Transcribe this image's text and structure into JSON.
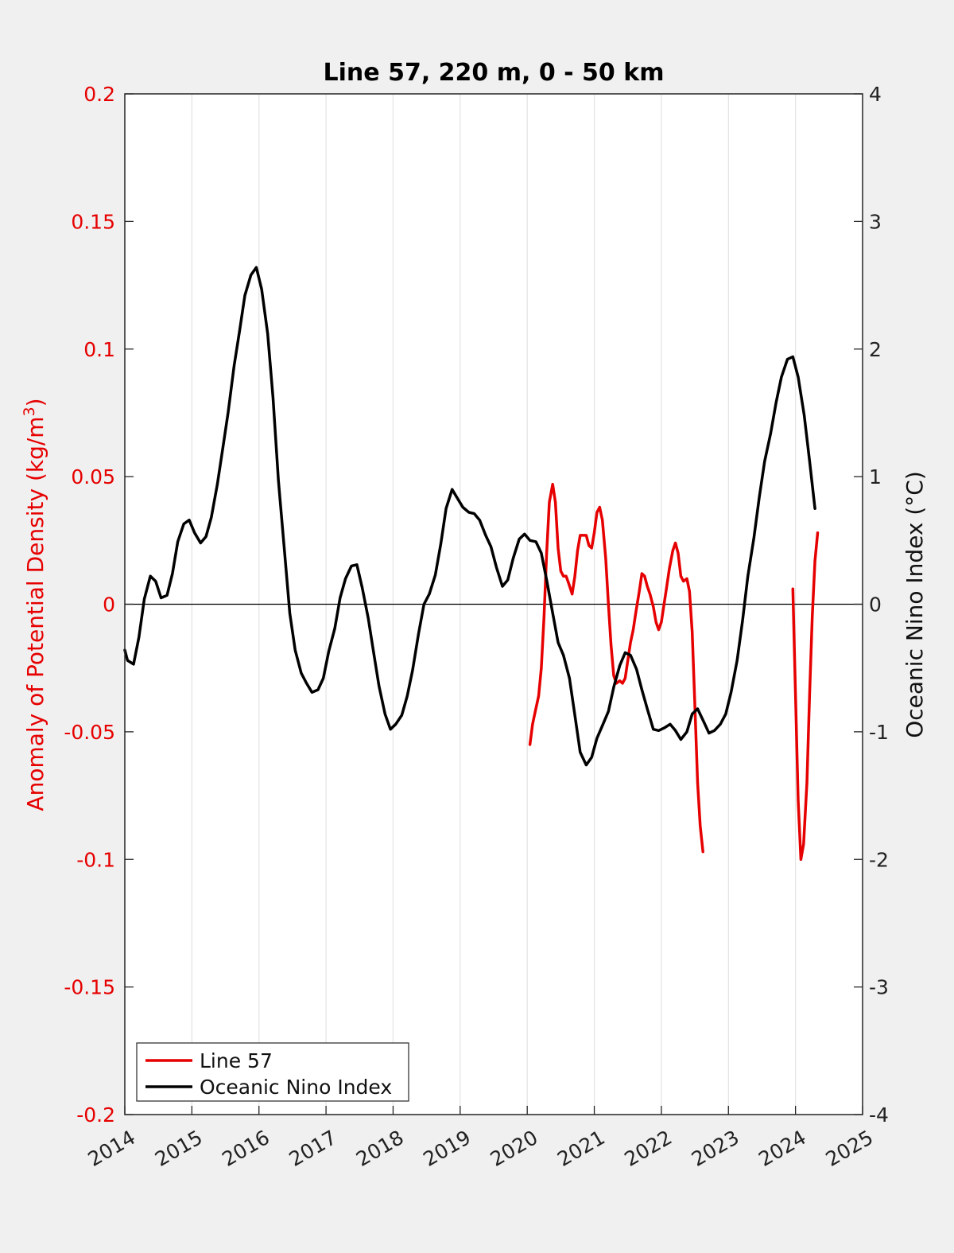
{
  "chart_data": {
    "type": "line",
    "title": "Line 57, 220 m, 0 - 50 km",
    "ylabel_left": "Anomaly of Potential Density (kg/m",
    "ylabel_left_sup": "3",
    "ylabel_left_end": ")",
    "ylabel_right": "Oceanic Nino Index (°C)",
    "xlim": [
      2014,
      2025
    ],
    "ylim_left": [
      -0.2,
      0.2
    ],
    "ylim_right": [
      -4,
      4
    ],
    "grid": "vertical",
    "legend_position": "bottom-left",
    "colors": {
      "left_axis": "#e60000",
      "line57": "#e60000",
      "oni": "#000000",
      "background": "#f0f0f0",
      "plot_bg": "#ffffff"
    },
    "x_ticks": [
      2014,
      2015,
      2016,
      2017,
      2018,
      2019,
      2020,
      2021,
      2022,
      2023,
      2024,
      2025
    ],
    "x_tick_labels": [
      "2014",
      "2015",
      "2016",
      "2017",
      "2018",
      "2019",
      "2020",
      "2021",
      "2022",
      "2023",
      "2024",
      "2025"
    ],
    "y_left_ticks": [
      0.2,
      0.15,
      0.1,
      0.05,
      0,
      -0.05,
      -0.1,
      -0.15,
      -0.2
    ],
    "y_left_tick_labels": [
      "0.2",
      "0.15",
      "0.1",
      "0.05",
      "0",
      "-0.05",
      "-0.1",
      "-0.15",
      "-0.2"
    ],
    "y_right_ticks": [
      4,
      3,
      2,
      1,
      0,
      -1,
      -2,
      -3,
      -4
    ],
    "y_right_tick_labels": [
      "4",
      "3",
      "2",
      "1",
      "0",
      "-1",
      "-2",
      "-3",
      "-4"
    ],
    "series": [
      {
        "name": "Line 57",
        "axis": "left",
        "segments": [
          [
            [
              2020.04,
              -0.055
            ],
            [
              2020.08,
              -0.047
            ],
            [
              2020.12,
              -0.042
            ],
            [
              2020.17,
              -0.036
            ],
            [
              2020.21,
              -0.025
            ],
            [
              2020.25,
              -0.005
            ],
            [
              2020.29,
              0.02
            ],
            [
              2020.33,
              0.04
            ],
            [
              2020.38,
              0.047
            ],
            [
              2020.42,
              0.04
            ],
            [
              2020.46,
              0.022
            ],
            [
              2020.5,
              0.013
            ],
            [
              2020.54,
              0.011
            ],
            [
              2020.58,
              0.011
            ],
            [
              2020.62,
              0.008
            ],
            [
              2020.67,
              0.004
            ],
            [
              2020.71,
              0.011
            ],
            [
              2020.75,
              0.021
            ],
            [
              2020.79,
              0.027
            ],
            [
              2020.83,
              0.027
            ],
            [
              2020.88,
              0.027
            ],
            [
              2020.92,
              0.023
            ],
            [
              2020.96,
              0.022
            ],
            [
              2021.0,
              0.028
            ],
            [
              2021.04,
              0.036
            ],
            [
              2021.08,
              0.038
            ],
            [
              2021.12,
              0.033
            ],
            [
              2021.17,
              0.018
            ],
            [
              2021.21,
              0.0
            ],
            [
              2021.25,
              -0.016
            ],
            [
              2021.29,
              -0.028
            ],
            [
              2021.33,
              -0.031
            ],
            [
              2021.38,
              -0.03
            ],
            [
              2021.42,
              -0.031
            ],
            [
              2021.46,
              -0.029
            ],
            [
              2021.5,
              -0.022
            ],
            [
              2021.54,
              -0.015
            ],
            [
              2021.58,
              -0.01
            ],
            [
              2021.62,
              -0.003
            ],
            [
              2021.67,
              0.005
            ],
            [
              2021.71,
              0.012
            ],
            [
              2021.75,
              0.011
            ],
            [
              2021.79,
              0.007
            ],
            [
              2021.83,
              0.004
            ],
            [
              2021.88,
              -0.001
            ],
            [
              2021.92,
              -0.007
            ],
            [
              2021.96,
              -0.01
            ],
            [
              2022.0,
              -0.007
            ],
            [
              2022.04,
              0.0
            ],
            [
              2022.08,
              0.007
            ],
            [
              2022.12,
              0.014
            ],
            [
              2022.17,
              0.021
            ],
            [
              2022.21,
              0.024
            ],
            [
              2022.25,
              0.02
            ],
            [
              2022.29,
              0.011
            ],
            [
              2022.33,
              0.009
            ],
            [
              2022.38,
              0.01
            ],
            [
              2022.42,
              0.005
            ],
            [
              2022.46,
              -0.011
            ],
            [
              2022.5,
              -0.04
            ],
            [
              2022.54,
              -0.07
            ],
            [
              2022.58,
              -0.087
            ],
            [
              2022.62,
              -0.097
            ]
          ],
          [
            [
              2023.96,
              0.006
            ],
            [
              2024.0,
              -0.035
            ],
            [
              2024.04,
              -0.077
            ],
            [
              2024.08,
              -0.1
            ],
            [
              2024.12,
              -0.094
            ],
            [
              2024.17,
              -0.07
            ],
            [
              2024.21,
              -0.035
            ],
            [
              2024.25,
              -0.005
            ],
            [
              2024.29,
              0.017
            ],
            [
              2024.33,
              0.028
            ]
          ]
        ]
      },
      {
        "name": "Oceanic Nino Index",
        "axis": "right",
        "segments": [
          [
            [
              2014.0,
              -0.36
            ],
            [
              2014.04,
              -0.44
            ],
            [
              2014.13,
              -0.47
            ],
            [
              2014.21,
              -0.26
            ],
            [
              2014.29,
              0.04
            ],
            [
              2014.38,
              0.22
            ],
            [
              2014.46,
              0.18
            ],
            [
              2014.54,
              0.05
            ],
            [
              2014.63,
              0.07
            ],
            [
              2014.71,
              0.24
            ],
            [
              2014.79,
              0.49
            ],
            [
              2014.88,
              0.63
            ],
            [
              2014.96,
              0.66
            ],
            [
              2015.04,
              0.56
            ],
            [
              2015.13,
              0.48
            ],
            [
              2015.21,
              0.53
            ],
            [
              2015.29,
              0.68
            ],
            [
              2015.38,
              0.94
            ],
            [
              2015.46,
              1.22
            ],
            [
              2015.54,
              1.5
            ],
            [
              2015.63,
              1.87
            ],
            [
              2015.71,
              2.14
            ],
            [
              2015.79,
              2.42
            ],
            [
              2015.88,
              2.58
            ],
            [
              2015.96,
              2.64
            ],
            [
              2016.04,
              2.47
            ],
            [
              2016.13,
              2.12
            ],
            [
              2016.21,
              1.62
            ],
            [
              2016.29,
              0.97
            ],
            [
              2016.38,
              0.42
            ],
            [
              2016.46,
              -0.07
            ],
            [
              2016.54,
              -0.36
            ],
            [
              2016.63,
              -0.54
            ],
            [
              2016.71,
              -0.62
            ],
            [
              2016.79,
              -0.69
            ],
            [
              2016.88,
              -0.67
            ],
            [
              2016.96,
              -0.58
            ],
            [
              2017.04,
              -0.37
            ],
            [
              2017.13,
              -0.19
            ],
            [
              2017.21,
              0.05
            ],
            [
              2017.29,
              0.2
            ],
            [
              2017.38,
              0.3
            ],
            [
              2017.46,
              0.31
            ],
            [
              2017.54,
              0.13
            ],
            [
              2017.63,
              -0.11
            ],
            [
              2017.71,
              -0.38
            ],
            [
              2017.79,
              -0.64
            ],
            [
              2017.88,
              -0.86
            ],
            [
              2017.96,
              -0.98
            ],
            [
              2018.04,
              -0.94
            ],
            [
              2018.13,
              -0.87
            ],
            [
              2018.21,
              -0.72
            ],
            [
              2018.29,
              -0.52
            ],
            [
              2018.38,
              -0.23
            ],
            [
              2018.46,
              0.0
            ],
            [
              2018.54,
              0.08
            ],
            [
              2018.63,
              0.23
            ],
            [
              2018.71,
              0.47
            ],
            [
              2018.79,
              0.75
            ],
            [
              2018.88,
              0.9
            ],
            [
              2018.96,
              0.83
            ],
            [
              2019.04,
              0.76
            ],
            [
              2019.13,
              0.72
            ],
            [
              2019.21,
              0.71
            ],
            [
              2019.29,
              0.66
            ],
            [
              2019.38,
              0.54
            ],
            [
              2019.46,
              0.45
            ],
            [
              2019.54,
              0.29
            ],
            [
              2019.63,
              0.14
            ],
            [
              2019.71,
              0.19
            ],
            [
              2019.79,
              0.36
            ],
            [
              2019.88,
              0.51
            ],
            [
              2019.96,
              0.55
            ],
            [
              2020.04,
              0.5
            ],
            [
              2020.13,
              0.49
            ],
            [
              2020.21,
              0.4
            ],
            [
              2020.29,
              0.19
            ],
            [
              2020.38,
              -0.07
            ],
            [
              2020.46,
              -0.3
            ],
            [
              2020.54,
              -0.4
            ],
            [
              2020.63,
              -0.58
            ],
            [
              2020.71,
              -0.87
            ],
            [
              2020.79,
              -1.16
            ],
            [
              2020.88,
              -1.26
            ],
            [
              2020.96,
              -1.2
            ],
            [
              2021.04,
              -1.05
            ],
            [
              2021.13,
              -0.94
            ],
            [
              2021.21,
              -0.84
            ],
            [
              2021.29,
              -0.65
            ],
            [
              2021.38,
              -0.48
            ],
            [
              2021.46,
              -0.38
            ],
            [
              2021.54,
              -0.4
            ],
            [
              2021.63,
              -0.51
            ],
            [
              2021.71,
              -0.67
            ],
            [
              2021.79,
              -0.82
            ],
            [
              2021.88,
              -0.98
            ],
            [
              2021.96,
              -0.99
            ],
            [
              2022.04,
              -0.97
            ],
            [
              2022.13,
              -0.94
            ],
            [
              2022.21,
              -0.99
            ],
            [
              2022.29,
              -1.06
            ],
            [
              2022.38,
              -1.0
            ],
            [
              2022.46,
              -0.86
            ],
            [
              2022.54,
              -0.82
            ],
            [
              2022.63,
              -0.92
            ],
            [
              2022.71,
              -1.01
            ],
            [
              2022.79,
              -0.99
            ],
            [
              2022.88,
              -0.94
            ],
            [
              2022.96,
              -0.86
            ],
            [
              2023.04,
              -0.69
            ],
            [
              2023.13,
              -0.44
            ],
            [
              2023.21,
              -0.13
            ],
            [
              2023.29,
              0.22
            ],
            [
              2023.38,
              0.52
            ],
            [
              2023.46,
              0.84
            ],
            [
              2023.54,
              1.12
            ],
            [
              2023.63,
              1.34
            ],
            [
              2023.71,
              1.58
            ],
            [
              2023.79,
              1.78
            ],
            [
              2023.88,
              1.92
            ],
            [
              2023.96,
              1.94
            ],
            [
              2024.04,
              1.78
            ],
            [
              2024.13,
              1.48
            ],
            [
              2024.21,
              1.12
            ],
            [
              2024.29,
              0.75
            ]
          ]
        ]
      }
    ],
    "legend": [
      {
        "label": "Line 57",
        "color": "#e60000"
      },
      {
        "label": "Oceanic Nino Index",
        "color": "#000000"
      }
    ]
  }
}
